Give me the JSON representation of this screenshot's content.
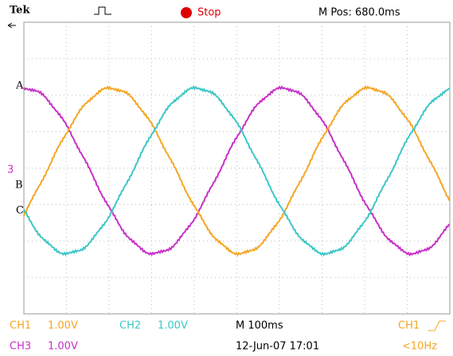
{
  "header": {
    "brand": "Tek",
    "status": "Stop",
    "position": "M Pos: 680.0ms"
  },
  "markers": {
    "a": "A",
    "b": "B",
    "c": "C",
    "ch3": "3"
  },
  "footer": {
    "ch1_label": "CH1",
    "ch1_scale": "1.00V",
    "ch2_label": "CH2",
    "ch2_scale": "1.00V",
    "timebase": "M 100ms",
    "trigger_source": "CH1",
    "ch3_label": "CH3",
    "ch3_scale": "1.00V",
    "timestamp": "12-Jun-07 17:01",
    "trigger_freq": "<10Hz"
  }
}
